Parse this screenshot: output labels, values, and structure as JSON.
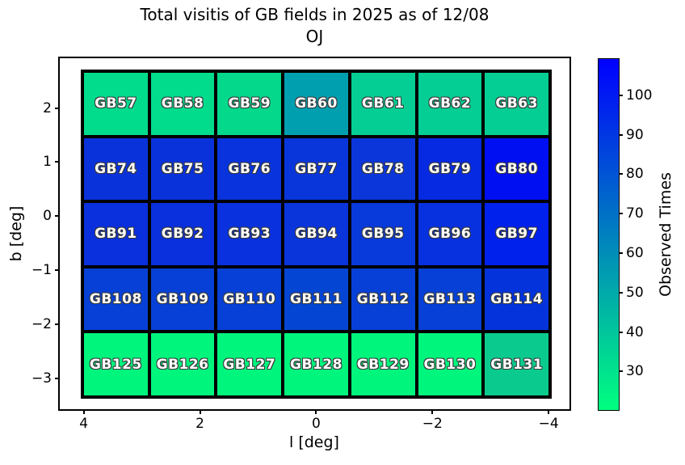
{
  "figure": {
    "title_line1": "Total visitis of GB fields in 2025 as of 12/08",
    "title_line2": "OJ"
  },
  "chart_data": {
    "type": "heatmap",
    "title": "Total visitis of GB fields in 2025 as of 12/08 OJ",
    "xlabel": "l [deg]",
    "ylabel": "b [deg]",
    "x_ticks": [
      "4",
      "2",
      "0",
      "−2",
      "−4"
    ],
    "y_ticks": [
      "2",
      "1",
      "0",
      "−1",
      "−2",
      "−3"
    ],
    "x_range_deg": [
      4.4,
      -4.4
    ],
    "y_range_deg": [
      2.9,
      -3.6
    ],
    "grid": {
      "rows": 5,
      "cols": 7
    },
    "colorbar": {
      "label": "Observed Times",
      "ticks": [
        "100",
        "90",
        "80",
        "70",
        "60",
        "50",
        "40",
        "30"
      ],
      "colormap": "winter_r",
      "gradient_bottom_to_top": [
        "#00ff80",
        "#00bf9f",
        "#0080bf",
        "#0040df",
        "#0000ff"
      ],
      "value_range_estimate": [
        21,
        108
      ]
    },
    "rows": [
      {
        "cells": [
          {
            "label": "GB57",
            "color": "#00dc8c",
            "value_estimate": 33
          },
          {
            "label": "GB58",
            "color": "#00dc8c",
            "value_estimate": 33
          },
          {
            "label": "GB59",
            "color": "#03d88b",
            "value_estimate": 34
          },
          {
            "label": "GB60",
            "color": "#009fb0",
            "value_estimate": 54
          },
          {
            "label": "GB61",
            "color": "#05ce94",
            "value_estimate": 38
          },
          {
            "label": "GB62",
            "color": "#05ce94",
            "value_estimate": 38
          },
          {
            "label": "GB63",
            "color": "#05ce94",
            "value_estimate": 38
          }
        ]
      },
      {
        "cells": [
          {
            "label": "GB74",
            "color": "#0a32db",
            "value_estimate": 91
          },
          {
            "label": "GB75",
            "color": "#0a32db",
            "value_estimate": 91
          },
          {
            "label": "GB76",
            "color": "#0933dc",
            "value_estimate": 91
          },
          {
            "label": "GB77",
            "color": "#0936da",
            "value_estimate": 90
          },
          {
            "label": "GB78",
            "color": "#0a36da",
            "value_estimate": 90
          },
          {
            "label": "GB79",
            "color": "#0629e2",
            "value_estimate": 94
          },
          {
            "label": "GB80",
            "color": "#000ff2",
            "value_estimate": 104
          }
        ]
      },
      {
        "cells": [
          {
            "label": "GB91",
            "color": "#0a2fdc",
            "value_estimate": 92
          },
          {
            "label": "GB92",
            "color": "#0a2fdc",
            "value_estimate": 92
          },
          {
            "label": "GB93",
            "color": "#0931dd",
            "value_estimate": 92
          },
          {
            "label": "GB94",
            "color": "#0935db",
            "value_estimate": 90
          },
          {
            "label": "GB95",
            "color": "#0839da",
            "value_estimate": 89
          },
          {
            "label": "GB96",
            "color": "#0730df",
            "value_estimate": 92
          },
          {
            "label": "GB97",
            "color": "#0020ec",
            "value_estimate": 98
          }
        ]
      },
      {
        "cells": [
          {
            "label": "GB108",
            "color": "#0640d6",
            "value_estimate": 86
          },
          {
            "label": "GB109",
            "color": "#0640d6",
            "value_estimate": 86
          },
          {
            "label": "GB110",
            "color": "#0640d6",
            "value_estimate": 86
          },
          {
            "label": "GB111",
            "color": "#0545d3",
            "value_estimate": 84
          },
          {
            "label": "GB112",
            "color": "#0640d6",
            "value_estimate": 86
          },
          {
            "label": "GB113",
            "color": "#0640d6",
            "value_estimate": 86
          },
          {
            "label": "GB114",
            "color": "#0433dc",
            "value_estimate": 91
          }
        ]
      },
      {
        "cells": [
          {
            "label": "GB125",
            "color": "#00f57d",
            "value_estimate": 24
          },
          {
            "label": "GB126",
            "color": "#00f57d",
            "value_estimate": 24
          },
          {
            "label": "GB127",
            "color": "#00f57d",
            "value_estimate": 24
          },
          {
            "label": "GB128",
            "color": "#00f57d",
            "value_estimate": 24
          },
          {
            "label": "GB129",
            "color": "#00f57d",
            "value_estimate": 24
          },
          {
            "label": "GB130",
            "color": "#00f57d",
            "value_estimate": 24
          },
          {
            "label": "GB131",
            "color": "#0acb8d",
            "value_estimate": 39
          }
        ]
      }
    ]
  }
}
